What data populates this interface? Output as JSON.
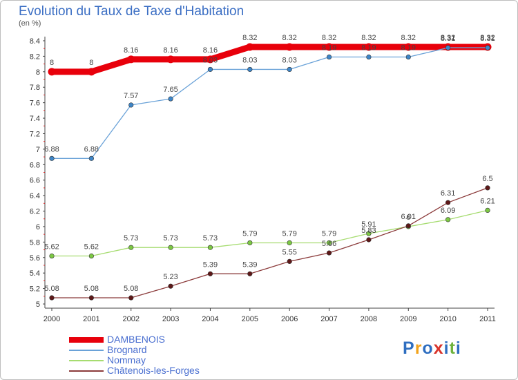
{
  "title": "Evolution du Taux de Taxe d'Habitation",
  "subtitle": "(en %)",
  "logo": {
    "letters": [
      "P",
      "r",
      "o",
      "x",
      "i",
      "t",
      "i"
    ],
    "colors": [
      "#2e6ec0",
      "#f2a31c",
      "#2e6ec0",
      "#d9342b",
      "#2e6ec0",
      "#6fb33e",
      "#2e6ec0"
    ]
  },
  "chart_data": {
    "type": "line",
    "title": "Evolution du Taux de Taxe d'Habitation",
    "ylabel": "(en %)",
    "x": [
      "2000",
      "2001",
      "2002",
      "2003",
      "2004",
      "2005",
      "2006",
      "2007",
      "2008",
      "2009",
      "2010",
      "2011"
    ],
    "ylim": [
      5,
      8.4
    ],
    "yticks": [
      "5",
      "5.2",
      "5.4",
      "5.6",
      "5.8",
      "6",
      "6.2",
      "6.4",
      "6.6",
      "6.8",
      "7",
      "7.2",
      "7.4",
      "7.6",
      "7.8",
      "8",
      "8.2",
      "8.4"
    ],
    "series": [
      {
        "name": "DAMBENOIS",
        "color": "#e8000b",
        "width": 9,
        "values": [
          8,
          8,
          8.16,
          8.16,
          8.16,
          8.32,
          8.32,
          8.32,
          8.32,
          8.32,
          8.32,
          8.32
        ],
        "labels": [
          "8",
          "8",
          "8.16",
          "8.16",
          "8.16",
          "8.32",
          "8.32",
          "8.32",
          "8.32",
          "8.32",
          "8.32",
          "8.32"
        ]
      },
      {
        "name": "Brognard",
        "color": "#6aa2d8",
        "width": 1.3,
        "marker": "#3e86c8",
        "values": [
          6.88,
          6.88,
          7.57,
          7.65,
          8.03,
          8.03,
          8.03,
          8.19,
          8.19,
          8.19,
          8.31,
          8.31
        ],
        "labels": [
          "6.88",
          "6.88",
          "7.57",
          "7.65",
          "8.03",
          "8.03",
          "8.03",
          "8.19",
          "8.19",
          "8.19",
          "8.31",
          "8.31"
        ]
      },
      {
        "name": "Nommay",
        "color": "#a6dc70",
        "width": 1.3,
        "marker": "#7cc843",
        "values": [
          5.62,
          5.62,
          5.73,
          5.73,
          5.73,
          5.79,
          5.79,
          5.79,
          5.91,
          6.0,
          6.09,
          6.21
        ],
        "labels": [
          "5.62",
          "5.62",
          "5.73",
          "5.73",
          "5.73",
          "5.79",
          "5.79",
          "5.79",
          "5.91",
          "6",
          "6.09",
          "6.21"
        ]
      },
      {
        "name": "Châtenois-les-Forges",
        "color": "#8b3a3a",
        "width": 1.3,
        "marker": "#5e1818",
        "values": [
          5.08,
          5.08,
          5.08,
          5.23,
          5.39,
          5.39,
          5.55,
          5.66,
          5.83,
          6.01,
          6.31,
          6.5
        ],
        "labels": [
          "5.08",
          "5.08",
          "5.08",
          "5.23",
          "5.39",
          "5.39",
          "5.55",
          "5.66",
          "5.83",
          "6.01",
          "6.31",
          "6.5"
        ]
      }
    ]
  }
}
